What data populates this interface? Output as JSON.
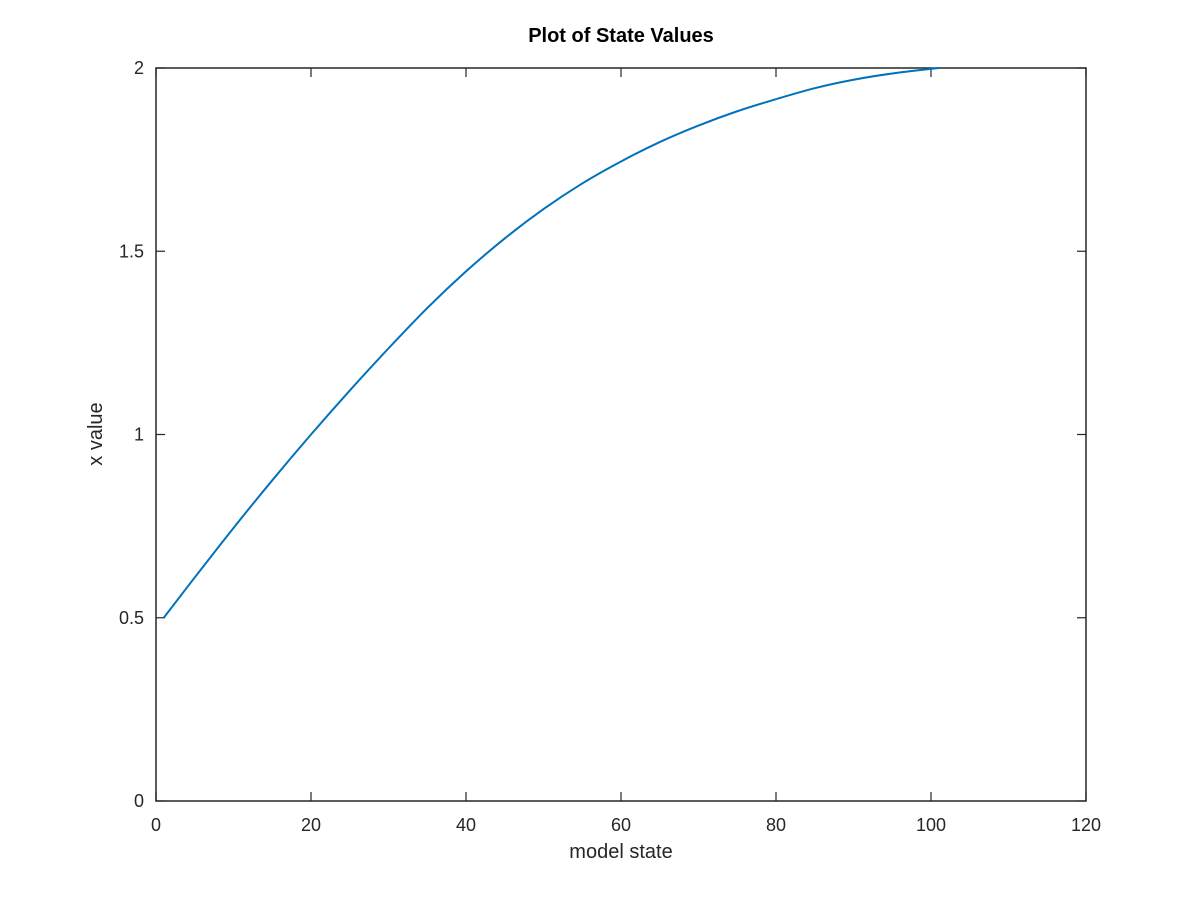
{
  "chart_data": {
    "type": "line",
    "title": "Plot of State Values",
    "xlabel": "model state",
    "ylabel": "x value",
    "xlim": [
      0,
      120
    ],
    "ylim": [
      0,
      2
    ],
    "xticks": [
      0,
      20,
      40,
      60,
      80,
      100,
      120
    ],
    "yticks": [
      0,
      0.5,
      1,
      1.5,
      2
    ],
    "xtick_labels": [
      "0",
      "20",
      "40",
      "60",
      "80",
      "100",
      "120"
    ],
    "ytick_labels": [
      "0",
      "0.5",
      "1",
      "1.5",
      "2"
    ],
    "grid": false,
    "legend": "none",
    "series": [
      {
        "color": "#0072bd",
        "x": [
          1,
          5,
          10,
          15,
          20,
          25,
          30,
          35,
          40,
          45,
          50,
          55,
          60,
          65,
          70,
          75,
          80,
          85,
          90,
          95,
          101
        ],
        "y": [
          0.5,
          0.61,
          0.745,
          0.875,
          1.0,
          1.12,
          1.235,
          1.345,
          1.445,
          1.535,
          1.615,
          1.685,
          1.745,
          1.798,
          1.843,
          1.882,
          1.915,
          1.945,
          1.968,
          1.985,
          2.0
        ]
      }
    ]
  }
}
